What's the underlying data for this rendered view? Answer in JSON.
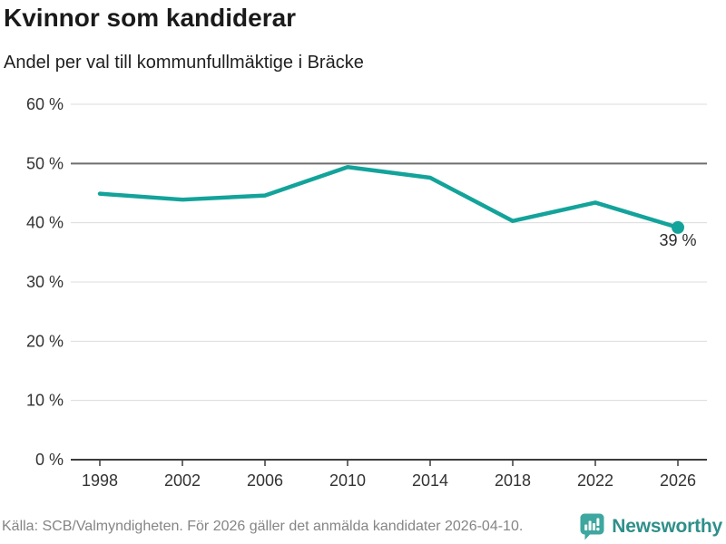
{
  "header": {
    "title": "Kvinnor som kandiderar",
    "subtitle": "Andel per val till kommunfullmäktige i Bräcke"
  },
  "chart_data": {
    "type": "line",
    "title": "Kvinnor som kandiderar",
    "subtitle": "Andel per val till kommunfullmäktige i Bräcke",
    "x": [
      1998,
      2002,
      2006,
      2010,
      2014,
      2018,
      2022,
      2026
    ],
    "values": [
      44.9,
      43.9,
      44.6,
      49.4,
      47.6,
      40.3,
      43.4,
      39.2
    ],
    "xlabel": "",
    "ylabel": "",
    "ylim": [
      0,
      60
    ],
    "yticks": [
      0,
      10,
      20,
      30,
      40,
      50,
      60
    ],
    "ytick_suffix": " %",
    "grid": "horizontal-only",
    "highlighted_gridline": 50,
    "legend": "none",
    "line_color": "#13a39a",
    "gridline_color": "#dcdcdc",
    "highlight_gridline_color": "#6e6e6e",
    "axis_color": "#3c3c3c",
    "tick_label_color": "#333333",
    "last_point_label": "39 %",
    "last_point_marker": "dot"
  },
  "footer": {
    "source": "Källa: SCB/Valmyndigheten. För 2026 gäller det anmälda kandidater 2026-04-10.",
    "brand": "Newsworthy",
    "brand_color": "#2f8f8a",
    "logo_color": "#3ea79f",
    "logo_icon": "speech-bubble-bar-chart"
  }
}
